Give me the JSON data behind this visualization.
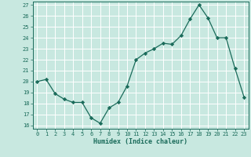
{
  "x": [
    0,
    1,
    2,
    3,
    4,
    5,
    6,
    7,
    8,
    9,
    10,
    11,
    12,
    13,
    14,
    15,
    16,
    17,
    18,
    19,
    20,
    21,
    22,
    23
  ],
  "y": [
    20.0,
    20.2,
    18.9,
    18.4,
    18.1,
    18.1,
    16.7,
    16.2,
    17.6,
    18.1,
    19.6,
    22.0,
    22.6,
    23.0,
    23.5,
    23.4,
    24.2,
    25.7,
    27.0,
    25.8,
    24.0,
    24.0,
    21.2,
    18.6
  ],
  "line_color": "#1a6b5a",
  "marker": "D",
  "marker_size": 2.2,
  "bg_color": "#c8e8e0",
  "grid_color": "#ffffff",
  "tick_color": "#1a6b5a",
  "label_color": "#1a6b5a",
  "xlabel": "Humidex (Indice chaleur)",
  "ylim": [
    16,
    27
  ],
  "yticks": [
    16,
    17,
    18,
    19,
    20,
    21,
    22,
    23,
    24,
    25,
    26,
    27
  ],
  "xticks": [
    0,
    1,
    2,
    3,
    4,
    5,
    6,
    7,
    8,
    9,
    10,
    11,
    12,
    13,
    14,
    15,
    16,
    17,
    18,
    19,
    20,
    21,
    22,
    23
  ]
}
